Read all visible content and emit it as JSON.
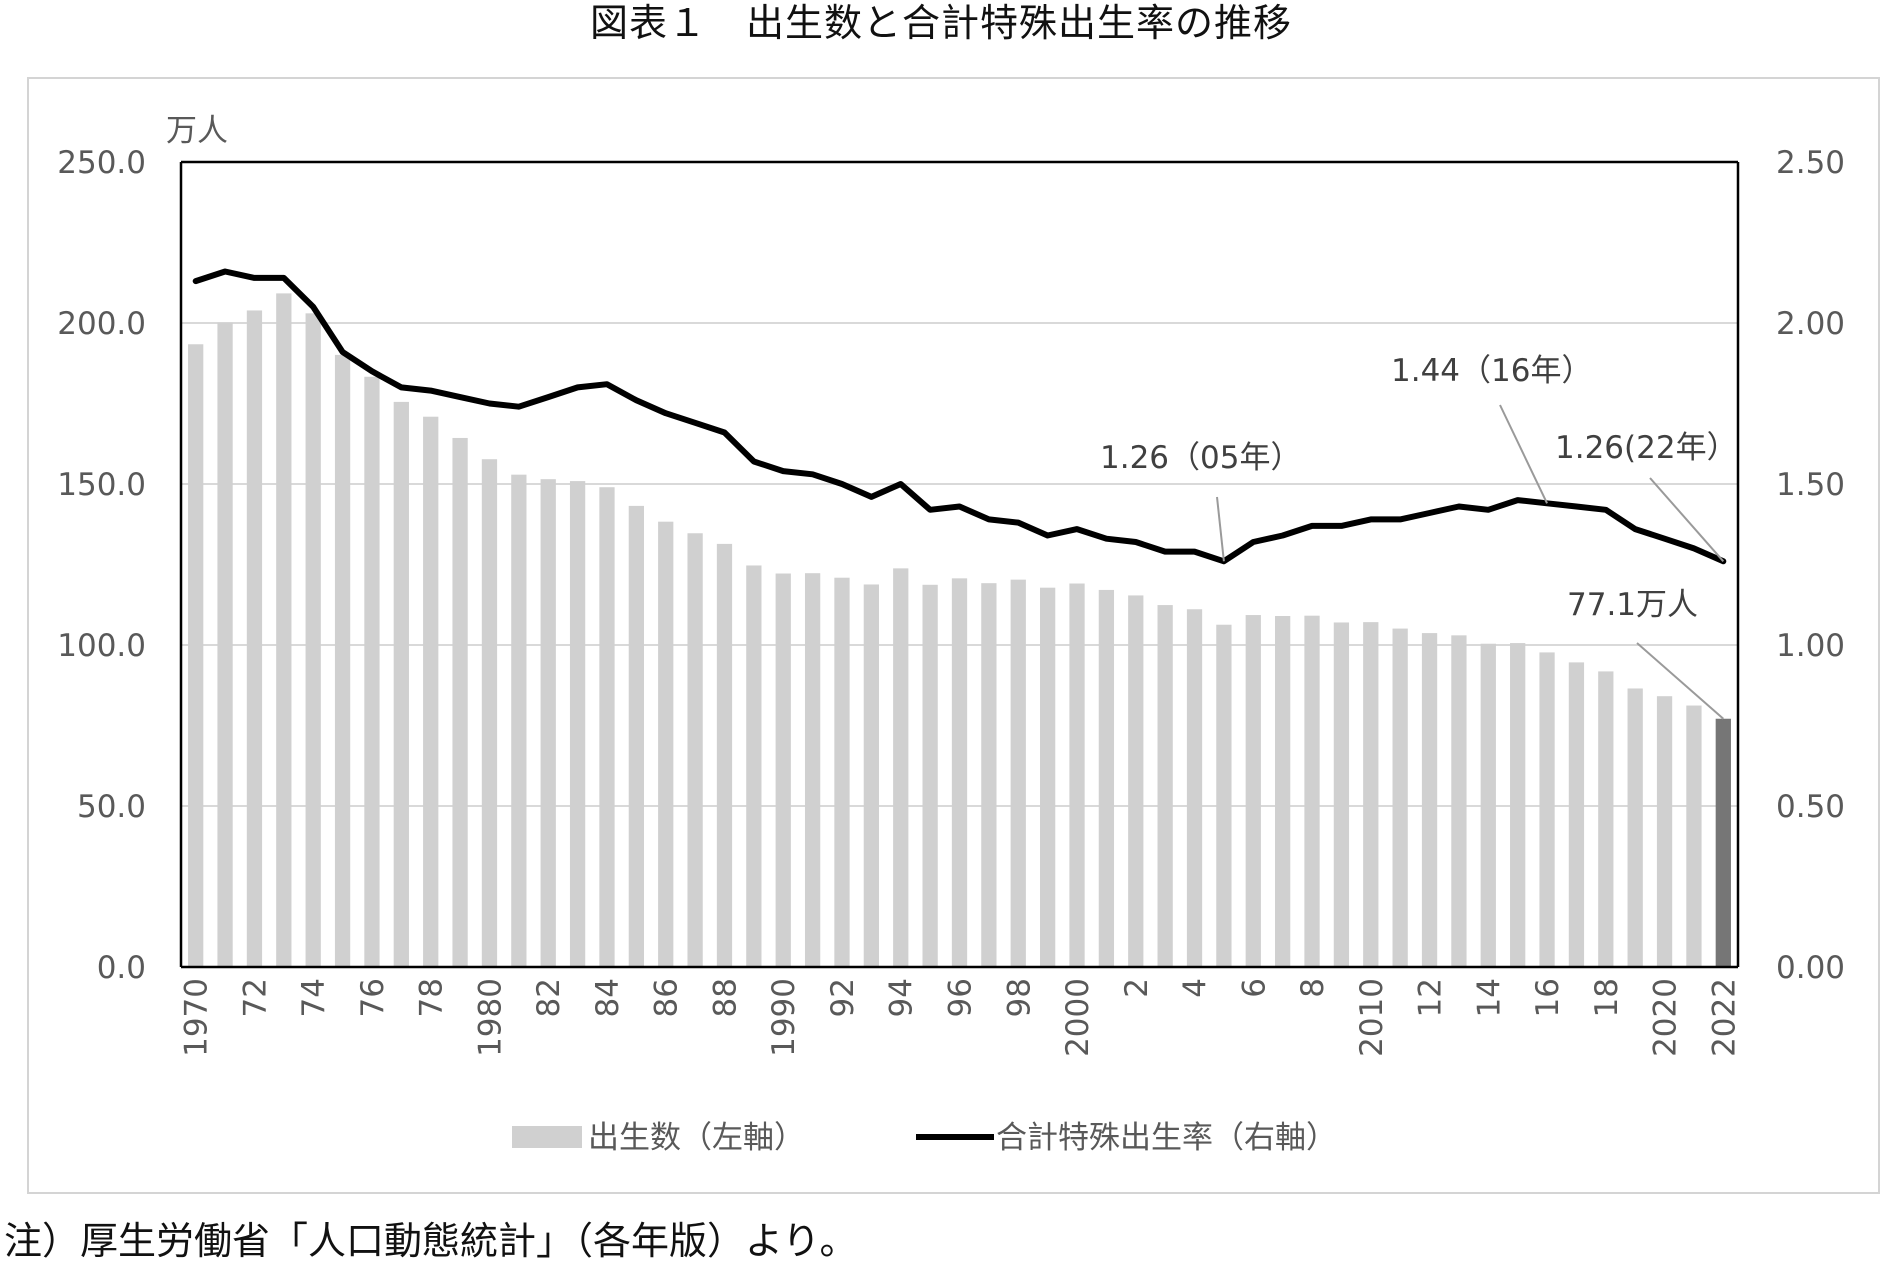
{
  "title": "図表１　出生数と合計特殊出生率の推移",
  "note": "注）厚生労働省「人口動態統計」（各年版）より。",
  "chart_data": {
    "type": "bar",
    "left_unit": "万人",
    "y_left_ticks": [
      "250.0",
      "200.0",
      "150.0",
      "100.0",
      "50.0",
      "0.0"
    ],
    "y_right_ticks": [
      "2.50",
      "2.00",
      "1.50",
      "1.00",
      "0.50",
      "0.00"
    ],
    "ylim_left": [
      0,
      250
    ],
    "ylim_right": [
      0,
      2.5
    ],
    "x": [
      1970,
      1971,
      1972,
      1973,
      1974,
      1975,
      1976,
      1977,
      1978,
      1979,
      1980,
      1981,
      1982,
      1983,
      1984,
      1985,
      1986,
      1987,
      1988,
      1989,
      1990,
      1991,
      1992,
      1993,
      1994,
      1995,
      1996,
      1997,
      1998,
      1999,
      2000,
      2001,
      2002,
      2003,
      2004,
      2005,
      2006,
      2007,
      2008,
      2009,
      2010,
      2011,
      2012,
      2013,
      2014,
      2015,
      2016,
      2017,
      2018,
      2019,
      2020,
      2021,
      2022
    ],
    "x_tick_labels": [
      "1970",
      "",
      "72",
      "",
      "74",
      "",
      "76",
      "",
      "78",
      "",
      "1980",
      "",
      "82",
      "",
      "84",
      "",
      "86",
      "",
      "88",
      "",
      "1990",
      "",
      "92",
      "",
      "94",
      "",
      "96",
      "",
      "98",
      "",
      "2000",
      "",
      "2",
      "",
      "4",
      "",
      "6",
      "",
      "8",
      "",
      "2010",
      "",
      "12",
      "",
      "14",
      "",
      "16",
      "",
      "18",
      "",
      "2020",
      "",
      "2022"
    ],
    "series": [
      {
        "name": "出生数（左軸）",
        "axis": "left",
        "color": "#d0d0d0",
        "highlight_last_color": "#767676",
        "values": [
          193.4,
          200.1,
          203.9,
          209.2,
          203.0,
          190.1,
          183.3,
          175.5,
          170.9,
          164.3,
          157.7,
          152.9,
          151.5,
          150.9,
          149.0,
          143.2,
          138.3,
          134.7,
          131.4,
          124.7,
          122.2,
          122.3,
          120.9,
          118.8,
          123.8,
          118.7,
          120.7,
          119.2,
          120.3,
          117.8,
          119.1,
          117.1,
          115.4,
          112.4,
          111.1,
          106.3,
          109.3,
          109.0,
          109.1,
          107.0,
          107.1,
          105.1,
          103.7,
          103.0,
          100.4,
          100.6,
          97.7,
          94.6,
          91.8,
          86.5,
          84.1,
          81.2,
          77.1
        ]
      },
      {
        "name": "合計特殊出生率（右軸）",
        "axis": "right",
        "color": "#000000",
        "values": [
          2.13,
          2.16,
          2.14,
          2.14,
          2.05,
          1.91,
          1.85,
          1.8,
          1.79,
          1.77,
          1.75,
          1.74,
          1.77,
          1.8,
          1.81,
          1.76,
          1.72,
          1.69,
          1.66,
          1.57,
          1.54,
          1.53,
          1.5,
          1.46,
          1.5,
          1.42,
          1.43,
          1.39,
          1.38,
          1.34,
          1.36,
          1.33,
          1.32,
          1.29,
          1.29,
          1.26,
          1.32,
          1.34,
          1.37,
          1.37,
          1.39,
          1.39,
          1.41,
          1.43,
          1.42,
          1.45,
          1.44,
          1.43,
          1.42,
          1.36,
          1.33,
          1.3,
          1.26
        ]
      }
    ],
    "annotations": [
      {
        "text": "1.26（05年）",
        "year": 2005,
        "series": 1
      },
      {
        "text": "1.44（16年）",
        "year": 2016,
        "series": 1
      },
      {
        "text": "1.26(22年）",
        "year": 2022,
        "series": 1
      },
      {
        "text": "77.1万人",
        "year": 2022,
        "series": 0
      }
    ],
    "grid": true,
    "legend_position": "bottom"
  }
}
